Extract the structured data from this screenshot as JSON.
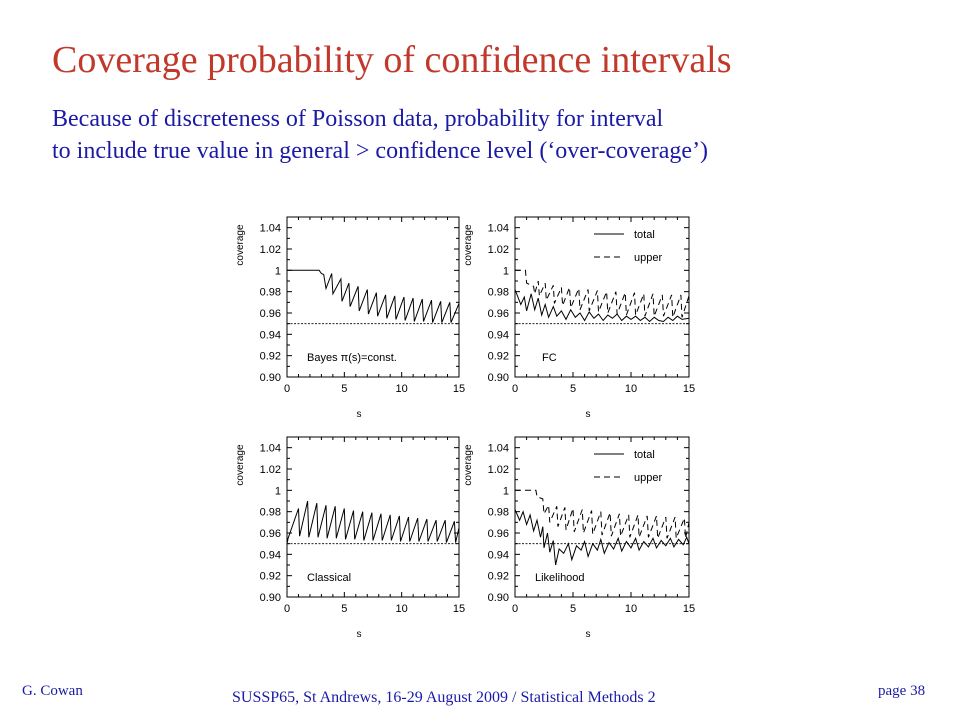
{
  "slide": {
    "title": "Coverage probability of confidence intervals",
    "subtitle_line1": "Because of discreteness of Poisson data, probability for interval",
    "subtitle_line2": "to include true value in general > confidence level (‘over-coverage’)"
  },
  "footer": {
    "author": "G. Cowan",
    "event": "SUSSP65, St Andrews, 16-29 August 2009 / Statistical Methods 2",
    "page": "page 38"
  },
  "colors": {
    "title": "#c0392b",
    "text": "#1a1aa6",
    "plot": "#000000"
  },
  "chart_data": [
    {
      "type": "line",
      "panel_label": "Bayes π(s)=const.",
      "xlabel": "s",
      "ylabel": "coverage",
      "xlim": [
        0,
        15
      ],
      "ylim": [
        0.9,
        1.05
      ],
      "xticks": [
        0,
        5,
        10,
        15
      ],
      "yticks": [
        0.9,
        0.92,
        0.94,
        0.96,
        0.98,
        1,
        1.02,
        1.04
      ],
      "reference_line": 0.95,
      "legend": [],
      "series": [
        {
          "style": "solid",
          "points": [
            [
              0,
              1
            ],
            [
              2.8,
              1
            ],
            [
              3.0,
              0.997
            ],
            [
              3.2,
              0.996
            ],
            [
              3.4,
              0.983
            ],
            [
              3.9,
              0.997
            ],
            [
              4.0,
              0.978
            ],
            [
              4.7,
              0.992
            ],
            [
              4.8,
              0.971
            ],
            [
              5.4,
              0.988
            ],
            [
              5.5,
              0.966
            ],
            [
              6.2,
              0.985
            ],
            [
              6.3,
              0.962
            ],
            [
              7.0,
              0.982
            ],
            [
              7.1,
              0.959
            ],
            [
              7.8,
              0.979
            ],
            [
              7.9,
              0.957
            ],
            [
              8.6,
              0.977
            ],
            [
              8.7,
              0.955
            ],
            [
              9.4,
              0.976
            ],
            [
              9.5,
              0.954
            ],
            [
              10.2,
              0.975
            ],
            [
              10.3,
              0.953
            ],
            [
              11.0,
              0.974
            ],
            [
              11.1,
              0.952
            ],
            [
              11.8,
              0.973
            ],
            [
              11.9,
              0.952
            ],
            [
              12.6,
              0.972
            ],
            [
              12.7,
              0.951
            ],
            [
              13.4,
              0.971
            ],
            [
              13.5,
              0.951
            ],
            [
              14.2,
              0.97
            ],
            [
              14.3,
              0.951
            ],
            [
              15,
              0.969
            ]
          ]
        }
      ]
    },
    {
      "type": "line",
      "panel_label": "FC",
      "xlabel": "s",
      "ylabel": "coverage",
      "xlim": [
        0,
        15
      ],
      "ylim": [
        0.9,
        1.05
      ],
      "xticks": [
        0,
        5,
        10,
        15
      ],
      "yticks": [
        0.9,
        0.92,
        0.94,
        0.96,
        0.98,
        1,
        1.02,
        1.04
      ],
      "reference_line": 0.95,
      "legend": [
        "total",
        "upper"
      ],
      "series": [
        {
          "style": "solid",
          "points": [
            [
              0,
              0.982
            ],
            [
              0.5,
              0.968
            ],
            [
              0.8,
              0.975
            ],
            [
              1.0,
              0.962
            ],
            [
              1.4,
              0.978
            ],
            [
              1.7,
              0.963
            ],
            [
              2.0,
              0.974
            ],
            [
              2.3,
              0.958
            ],
            [
              2.6,
              0.968
            ],
            [
              2.9,
              0.956
            ],
            [
              3.3,
              0.966
            ],
            [
              3.6,
              0.957
            ],
            [
              4.0,
              0.962
            ],
            [
              4.4,
              0.954
            ],
            [
              4.8,
              0.963
            ],
            [
              5.2,
              0.956
            ],
            [
              5.6,
              0.96
            ],
            [
              6.0,
              0.953
            ],
            [
              6.4,
              0.961
            ],
            [
              6.8,
              0.955
            ],
            [
              7.2,
              0.959
            ],
            [
              7.6,
              0.953
            ],
            [
              8.0,
              0.958
            ],
            [
              8.4,
              0.955
            ],
            [
              8.8,
              0.959
            ],
            [
              9.2,
              0.953
            ],
            [
              9.6,
              0.957
            ],
            [
              10.0,
              0.954
            ],
            [
              10.4,
              0.957
            ],
            [
              10.8,
              0.953
            ],
            [
              11.2,
              0.956
            ],
            [
              11.6,
              0.952
            ],
            [
              12.0,
              0.956
            ],
            [
              12.4,
              0.953
            ],
            [
              12.8,
              0.952
            ],
            [
              13.2,
              0.956
            ],
            [
              13.6,
              0.953
            ],
            [
              14.0,
              0.957
            ],
            [
              14.4,
              0.954
            ],
            [
              15,
              0.955
            ]
          ]
        },
        {
          "style": "dashed",
          "points": [
            [
              0,
              1
            ],
            [
              0.9,
              1
            ],
            [
              1.0,
              0.988
            ],
            [
              1.6,
              0.985
            ],
            [
              1.7,
              0.978
            ],
            [
              2.0,
              0.99
            ],
            [
              2.1,
              0.976
            ],
            [
              2.6,
              0.988
            ],
            [
              2.7,
              0.972
            ],
            [
              3.3,
              0.986
            ],
            [
              3.4,
              0.969
            ],
            [
              4.0,
              0.984
            ],
            [
              4.1,
              0.967
            ],
            [
              4.7,
              0.984
            ],
            [
              4.8,
              0.965
            ],
            [
              5.5,
              0.983
            ],
            [
              5.6,
              0.963
            ],
            [
              6.3,
              0.982
            ],
            [
              6.4,
              0.962
            ],
            [
              7.1,
              0.981
            ],
            [
              7.2,
              0.961
            ],
            [
              7.9,
              0.98
            ],
            [
              8.0,
              0.96
            ],
            [
              8.7,
              0.98
            ],
            [
              8.8,
              0.959
            ],
            [
              9.5,
              0.979
            ],
            [
              9.6,
              0.958
            ],
            [
              10.3,
              0.979
            ],
            [
              10.4,
              0.958
            ],
            [
              11.1,
              0.978
            ],
            [
              11.2,
              0.957
            ],
            [
              11.9,
              0.978
            ],
            [
              12.0,
              0.957
            ],
            [
              12.7,
              0.977
            ],
            [
              12.8,
              0.957
            ],
            [
              13.5,
              0.977
            ],
            [
              13.6,
              0.956
            ],
            [
              14.3,
              0.977
            ],
            [
              14.4,
              0.956
            ],
            [
              15,
              0.976
            ]
          ]
        }
      ]
    },
    {
      "type": "line",
      "panel_label": "Classical",
      "xlabel": "s",
      "ylabel": "coverage",
      "xlim": [
        0,
        15
      ],
      "ylim": [
        0.9,
        1.05
      ],
      "xticks": [
        0,
        5,
        10,
        15
      ],
      "yticks": [
        0.9,
        0.92,
        0.94,
        0.96,
        0.98,
        1,
        1.02,
        1.04
      ],
      "reference_line": 0.95,
      "legend": [],
      "series": [
        {
          "style": "solid",
          "points": [
            [
              0,
              0.95
            ],
            [
              0.1,
              0.955
            ],
            [
              1.0,
              0.983
            ],
            [
              1.1,
              0.957
            ],
            [
              1.8,
              0.99
            ],
            [
              1.9,
              0.956
            ],
            [
              2.6,
              0.988
            ],
            [
              2.7,
              0.956
            ],
            [
              3.4,
              0.986
            ],
            [
              3.5,
              0.955
            ],
            [
              4.2,
              0.985
            ],
            [
              4.3,
              0.955
            ],
            [
              5.0,
              0.983
            ],
            [
              5.1,
              0.954
            ],
            [
              5.8,
              0.981
            ],
            [
              5.9,
              0.954
            ],
            [
              6.6,
              0.98
            ],
            [
              6.7,
              0.953
            ],
            [
              7.4,
              0.979
            ],
            [
              7.5,
              0.953
            ],
            [
              8.2,
              0.978
            ],
            [
              8.3,
              0.953
            ],
            [
              9.0,
              0.977
            ],
            [
              9.1,
              0.953
            ],
            [
              9.8,
              0.976
            ],
            [
              9.9,
              0.952
            ],
            [
              10.6,
              0.975
            ],
            [
              10.7,
              0.952
            ],
            [
              11.4,
              0.974
            ],
            [
              11.5,
              0.952
            ],
            [
              12.2,
              0.973
            ],
            [
              12.3,
              0.952
            ],
            [
              13.0,
              0.972
            ],
            [
              13.1,
              0.952
            ],
            [
              13.8,
              0.972
            ],
            [
              13.9,
              0.951
            ],
            [
              14.6,
              0.971
            ],
            [
              14.7,
              0.951
            ],
            [
              15,
              0.965
            ]
          ]
        }
      ]
    },
    {
      "type": "line",
      "panel_label": "Likelihood",
      "xlabel": "s",
      "ylabel": "coverage",
      "xlim": [
        0,
        15
      ],
      "ylim": [
        0.9,
        1.05
      ],
      "xticks": [
        0,
        5,
        10,
        15
      ],
      "yticks": [
        0.9,
        0.92,
        0.94,
        0.96,
        0.98,
        1,
        1.02,
        1.04
      ],
      "reference_line": 0.95,
      "legend": [
        "total",
        "upper"
      ],
      "series": [
        {
          "style": "solid",
          "points": [
            [
              0,
              0.982
            ],
            [
              0.4,
              0.972
            ],
            [
              0.7,
              0.98
            ],
            [
              1.0,
              0.968
            ],
            [
              1.3,
              0.977
            ],
            [
              1.6,
              0.962
            ],
            [
              1.9,
              0.972
            ],
            [
              2.2,
              0.956
            ],
            [
              2.4,
              0.966
            ],
            [
              2.5,
              0.946
            ],
            [
              2.8,
              0.96
            ],
            [
              3.0,
              0.942
            ],
            [
              3.3,
              0.953
            ],
            [
              3.5,
              0.93
            ],
            [
              3.8,
              0.945
            ],
            [
              4.2,
              0.941
            ],
            [
              4.6,
              0.95
            ],
            [
              4.9,
              0.935
            ],
            [
              5.3,
              0.948
            ],
            [
              5.7,
              0.944
            ],
            [
              6.0,
              0.952
            ],
            [
              6.3,
              0.938
            ],
            [
              6.7,
              0.95
            ],
            [
              7.1,
              0.944
            ],
            [
              7.4,
              0.954
            ],
            [
              7.7,
              0.941
            ],
            [
              8.1,
              0.951
            ],
            [
              8.5,
              0.945
            ],
            [
              8.9,
              0.955
            ],
            [
              9.2,
              0.943
            ],
            [
              9.6,
              0.952
            ],
            [
              10.0,
              0.946
            ],
            [
              10.4,
              0.955
            ],
            [
              10.7,
              0.944
            ],
            [
              11.1,
              0.952
            ],
            [
              11.5,
              0.947
            ],
            [
              11.9,
              0.955
            ],
            [
              12.2,
              0.946
            ],
            [
              12.6,
              0.953
            ],
            [
              13.0,
              0.948
            ],
            [
              13.4,
              0.955
            ],
            [
              13.7,
              0.947
            ],
            [
              14.1,
              0.954
            ],
            [
              14.5,
              0.949
            ],
            [
              14.8,
              0.956
            ],
            [
              15,
              0.95
            ]
          ]
        },
        {
          "style": "dashed",
          "points": [
            [
              0,
              1
            ],
            [
              1.8,
              1
            ],
            [
              1.9,
              0.994
            ],
            [
              2.4,
              0.992
            ],
            [
              2.5,
              0.978
            ],
            [
              2.9,
              0.986
            ],
            [
              3.0,
              0.97
            ],
            [
              3.6,
              0.985
            ],
            [
              3.7,
              0.966
            ],
            [
              4.3,
              0.984
            ],
            [
              4.4,
              0.963
            ],
            [
              5.0,
              0.983
            ],
            [
              5.1,
              0.961
            ],
            [
              5.8,
              0.982
            ],
            [
              5.9,
              0.96
            ],
            [
              6.6,
              0.981
            ],
            [
              6.7,
              0.959
            ],
            [
              7.4,
              0.98
            ],
            [
              7.5,
              0.958
            ],
            [
              8.2,
              0.979
            ],
            [
              8.3,
              0.957
            ],
            [
              9.0,
              0.978
            ],
            [
              9.1,
              0.957
            ],
            [
              9.8,
              0.977
            ],
            [
              9.9,
              0.956
            ],
            [
              10.6,
              0.977
            ],
            [
              10.7,
              0.956
            ],
            [
              11.4,
              0.976
            ],
            [
              11.5,
              0.956
            ],
            [
              12.2,
              0.976
            ],
            [
              12.3,
              0.955
            ],
            [
              13.0,
              0.975
            ],
            [
              13.1,
              0.955
            ],
            [
              13.8,
              0.975
            ],
            [
              13.9,
              0.955
            ],
            [
              14.6,
              0.974
            ],
            [
              14.7,
              0.955
            ],
            [
              15,
              0.97
            ]
          ]
        }
      ]
    }
  ]
}
